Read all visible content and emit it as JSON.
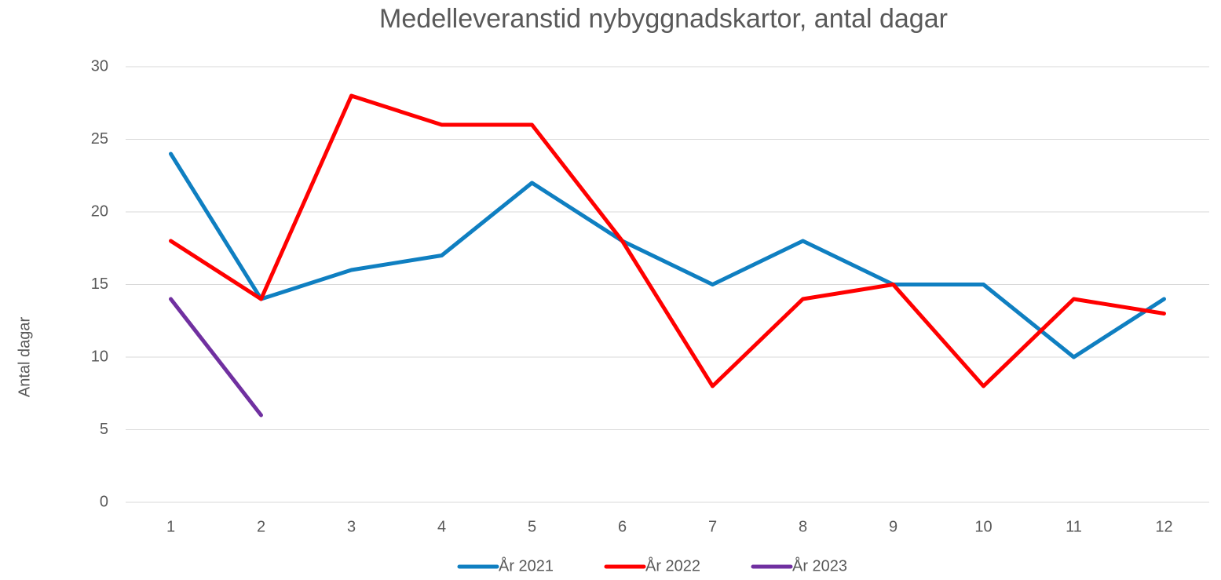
{
  "chart_data": {
    "type": "line",
    "title": "Medelleveranstid nybyggnadskartor, antal dagar",
    "y_label": "Antal dagar",
    "categories": [
      "1",
      "2",
      "3",
      "4",
      "5",
      "6",
      "7",
      "8",
      "9",
      "10",
      "11",
      "12"
    ],
    "series": [
      {
        "name": "År 2021",
        "color": "#0f7fc1",
        "values": [
          24,
          14,
          16,
          17,
          22,
          18,
          15,
          18,
          15,
          15,
          10,
          14
        ]
      },
      {
        "name": "År 2022",
        "color": "#ff0000",
        "values": [
          18,
          14,
          28,
          26,
          26,
          18,
          8,
          14,
          15,
          8,
          14,
          13
        ]
      },
      {
        "name": "År 2023",
        "color": "#7030a0",
        "values": [
          14,
          6,
          null,
          null,
          null,
          null,
          null,
          null,
          null,
          null,
          null,
          null
        ]
      }
    ],
    "ylim": [
      0,
      30
    ],
    "yticks": [
      0,
      5,
      10,
      15,
      20,
      25,
      30
    ],
    "grid": true,
    "legend": "bottom"
  }
}
